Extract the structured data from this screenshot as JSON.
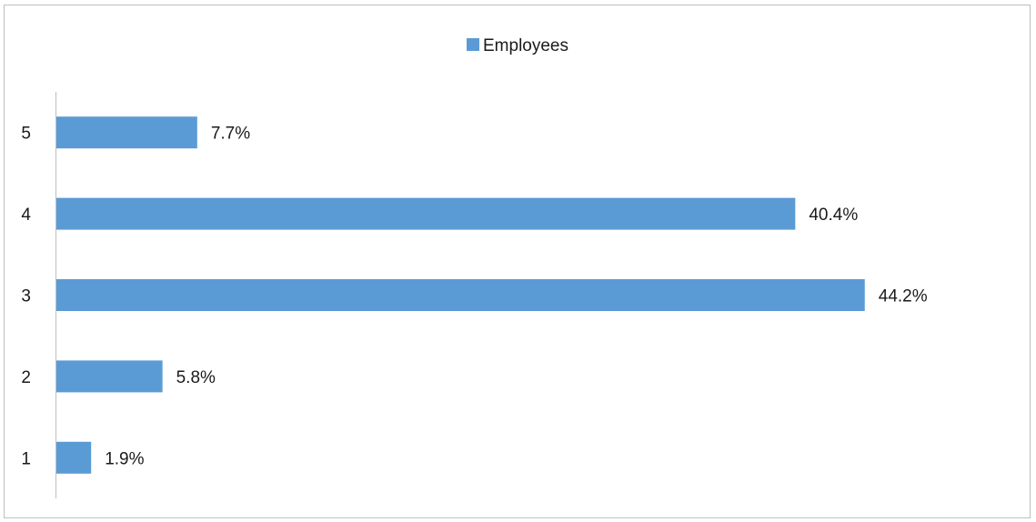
{
  "chart_data": {
    "type": "bar",
    "orientation": "horizontal",
    "categories": [
      "1",
      "2",
      "3",
      "4",
      "5"
    ],
    "series": [
      {
        "name": "Employees",
        "values": [
          1.9,
          5.8,
          44.2,
          40.4,
          7.7
        ],
        "data_labels": [
          "1.9%",
          "5.8%",
          "44.2%",
          "40.4%",
          "7.7%"
        ],
        "color": "#5b9bd5"
      }
    ],
    "unit": "%",
    "xlim": [
      0,
      46.5
    ],
    "legend_position": "top",
    "grid": false,
    "value_axis_visible": false
  }
}
